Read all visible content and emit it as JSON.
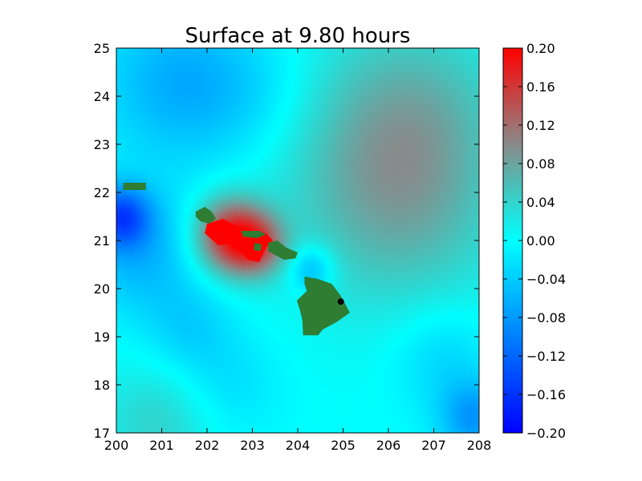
{
  "chart_data": {
    "type": "heatmap",
    "title": "Surface at 9.80 hours",
    "xlabel": "",
    "ylabel": "",
    "xlim": [
      200,
      208
    ],
    "ylim": [
      17,
      25
    ],
    "x_ticks": [
      "200",
      "201",
      "202",
      "203",
      "204",
      "205",
      "206",
      "207",
      "208"
    ],
    "y_ticks": [
      "17",
      "18",
      "19",
      "20",
      "21",
      "22",
      "23",
      "24",
      "25"
    ],
    "colorbar": {
      "range": [
        -0.2,
        0.2
      ],
      "ticks": [
        "−0.20",
        "−0.16",
        "−0.12",
        "−0.08",
        "−0.04",
        "0.00",
        "0.04",
        "0.08",
        "0.12",
        "0.16",
        "0.20"
      ],
      "stops": [
        {
          "value": -0.2,
          "color": "#0000ff"
        },
        {
          "value": -0.1,
          "color": "#0080ff"
        },
        {
          "value": 0.0,
          "color": "#00ffff"
        },
        {
          "value": 0.05,
          "color": "#40c8c0"
        },
        {
          "value": 0.1,
          "color": "#8a8a8a"
        },
        {
          "value": 0.2,
          "color": "#ff0000"
        }
      ]
    },
    "land_color": "#2e7d32",
    "gauge": {
      "lon": 204.95,
      "lat": 19.73,
      "color": "#000000"
    },
    "field_sources": [
      {
        "lon": 202.5,
        "lat": 21.1,
        "amp": 0.16,
        "sigma": 0.55
      },
      {
        "lon": 203.1,
        "lat": 20.9,
        "amp": 0.1,
        "sigma": 0.45
      },
      {
        "lon": 206.4,
        "lat": 21.6,
        "amp": 0.05,
        "sigma": 1.6
      },
      {
        "lon": 205.5,
        "lat": 23.0,
        "amp": 0.04,
        "sigma": 1.8
      },
      {
        "lon": 206.8,
        "lat": 23.8,
        "amp": 0.035,
        "sigma": 1.4
      },
      {
        "lon": 200.9,
        "lat": 17.2,
        "amp": 0.04,
        "sigma": 0.9
      },
      {
        "lon": 200.1,
        "lat": 21.5,
        "amp": -0.12,
        "sigma": 0.45
      },
      {
        "lon": 200.5,
        "lat": 20.8,
        "amp": -0.06,
        "sigma": 0.9
      },
      {
        "lon": 201.3,
        "lat": 24.3,
        "amp": -0.06,
        "sigma": 1.2
      },
      {
        "lon": 203.0,
        "lat": 24.0,
        "amp": -0.03,
        "sigma": 1.1
      },
      {
        "lon": 204.3,
        "lat": 20.4,
        "amp": -0.07,
        "sigma": 0.35
      },
      {
        "lon": 207.9,
        "lat": 17.3,
        "amp": -0.08,
        "sigma": 0.55
      },
      {
        "lon": 207.2,
        "lat": 18.6,
        "amp": -0.035,
        "sigma": 0.8
      },
      {
        "lon": 201.6,
        "lat": 19.2,
        "amp": -0.035,
        "sigma": 0.7
      },
      {
        "lon": 202.5,
        "lat": 18.0,
        "amp": -0.025,
        "sigma": 0.8
      }
    ],
    "land_polygons": [
      {
        "name": "kauai",
        "points": [
          [
            200.15,
            22.2
          ],
          [
            200.65,
            22.2
          ],
          [
            200.65,
            22.05
          ],
          [
            200.15,
            22.05
          ]
        ]
      },
      {
        "name": "oahu",
        "points": [
          [
            201.75,
            21.6
          ],
          [
            201.95,
            21.7
          ],
          [
            202.1,
            21.6
          ],
          [
            202.2,
            21.45
          ],
          [
            202.05,
            21.35
          ],
          [
            201.85,
            21.4
          ],
          [
            201.75,
            21.5
          ]
        ]
      },
      {
        "name": "molokai",
        "points": [
          [
            202.75,
            21.2
          ],
          [
            203.15,
            21.2
          ],
          [
            203.3,
            21.12
          ],
          [
            203.1,
            21.05
          ],
          [
            202.8,
            21.08
          ]
        ]
      },
      {
        "name": "lanai",
        "points": [
          [
            203.05,
            20.95
          ],
          [
            203.2,
            20.92
          ],
          [
            203.18,
            20.78
          ],
          [
            203.03,
            20.8
          ]
        ]
      },
      {
        "name": "maui",
        "points": [
          [
            203.35,
            20.95
          ],
          [
            203.55,
            21.0
          ],
          [
            203.75,
            20.85
          ],
          [
            204.0,
            20.75
          ],
          [
            203.95,
            20.63
          ],
          [
            203.7,
            20.6
          ],
          [
            203.5,
            20.7
          ],
          [
            203.35,
            20.78
          ]
        ]
      },
      {
        "name": "hawaii",
        "points": [
          [
            204.15,
            20.25
          ],
          [
            204.45,
            20.2
          ],
          [
            204.75,
            20.1
          ],
          [
            204.95,
            19.85
          ],
          [
            205.15,
            19.5
          ],
          [
            204.85,
            19.3
          ],
          [
            204.55,
            19.15
          ],
          [
            204.45,
            19.03
          ],
          [
            204.12,
            19.03
          ],
          [
            204.1,
            19.35
          ],
          [
            204.05,
            19.55
          ],
          [
            203.98,
            19.75
          ],
          [
            204.2,
            19.95
          ],
          [
            204.15,
            20.1
          ]
        ]
      }
    ],
    "positive_patches": [
      {
        "points": [
          [
            202.0,
            21.35
          ],
          [
            202.35,
            21.45
          ],
          [
            202.75,
            21.25
          ],
          [
            203.3,
            21.15
          ],
          [
            203.45,
            21.0
          ],
          [
            203.3,
            20.85
          ],
          [
            203.15,
            20.55
          ],
          [
            202.9,
            20.6
          ],
          [
            202.6,
            20.95
          ],
          [
            202.25,
            20.9
          ],
          [
            201.95,
            21.15
          ]
        ]
      }
    ]
  }
}
